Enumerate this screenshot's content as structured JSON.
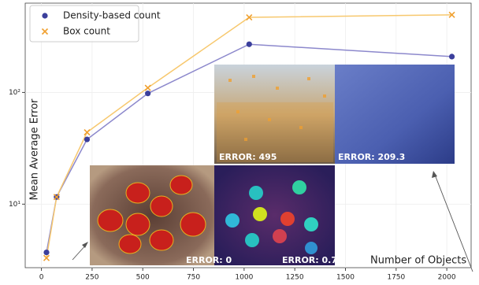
{
  "chart_data": {
    "type": "line",
    "ylabel": "Mean Average Error",
    "xlabel": "Number of Objects",
    "x": [
      25,
      75,
      225,
      525,
      1025,
      2025
    ],
    "series": [
      {
        "name": "Density-based count",
        "color": "#3b3f9c",
        "line_color": "#8c88cc",
        "marker": "circle",
        "values": [
          3.7,
          11.6,
          38,
          98,
          270,
          209.3
        ]
      },
      {
        "name": "Box count",
        "color": "#f0a030",
        "line_color": "#f7c86e",
        "marker": "x",
        "values": [
          3.3,
          11.6,
          44,
          110,
          470,
          495
        ]
      }
    ],
    "xlim": [
      -80,
      2120
    ],
    "xticks": [
      0,
      250,
      500,
      750,
      1000,
      1250,
      1500,
      1750,
      2000
    ],
    "ylim": [
      2.7,
      630
    ],
    "log_y": true,
    "yticks": [
      {
        "value": 10,
        "label": "10¹"
      },
      {
        "value": 100,
        "label": "10²"
      }
    ],
    "grid": true,
    "legend": "upper-left",
    "annotations": [
      "ERROR: 495",
      "ERROR: 209.3",
      "ERROR: 0",
      "ERROR: 0.7"
    ]
  }
}
